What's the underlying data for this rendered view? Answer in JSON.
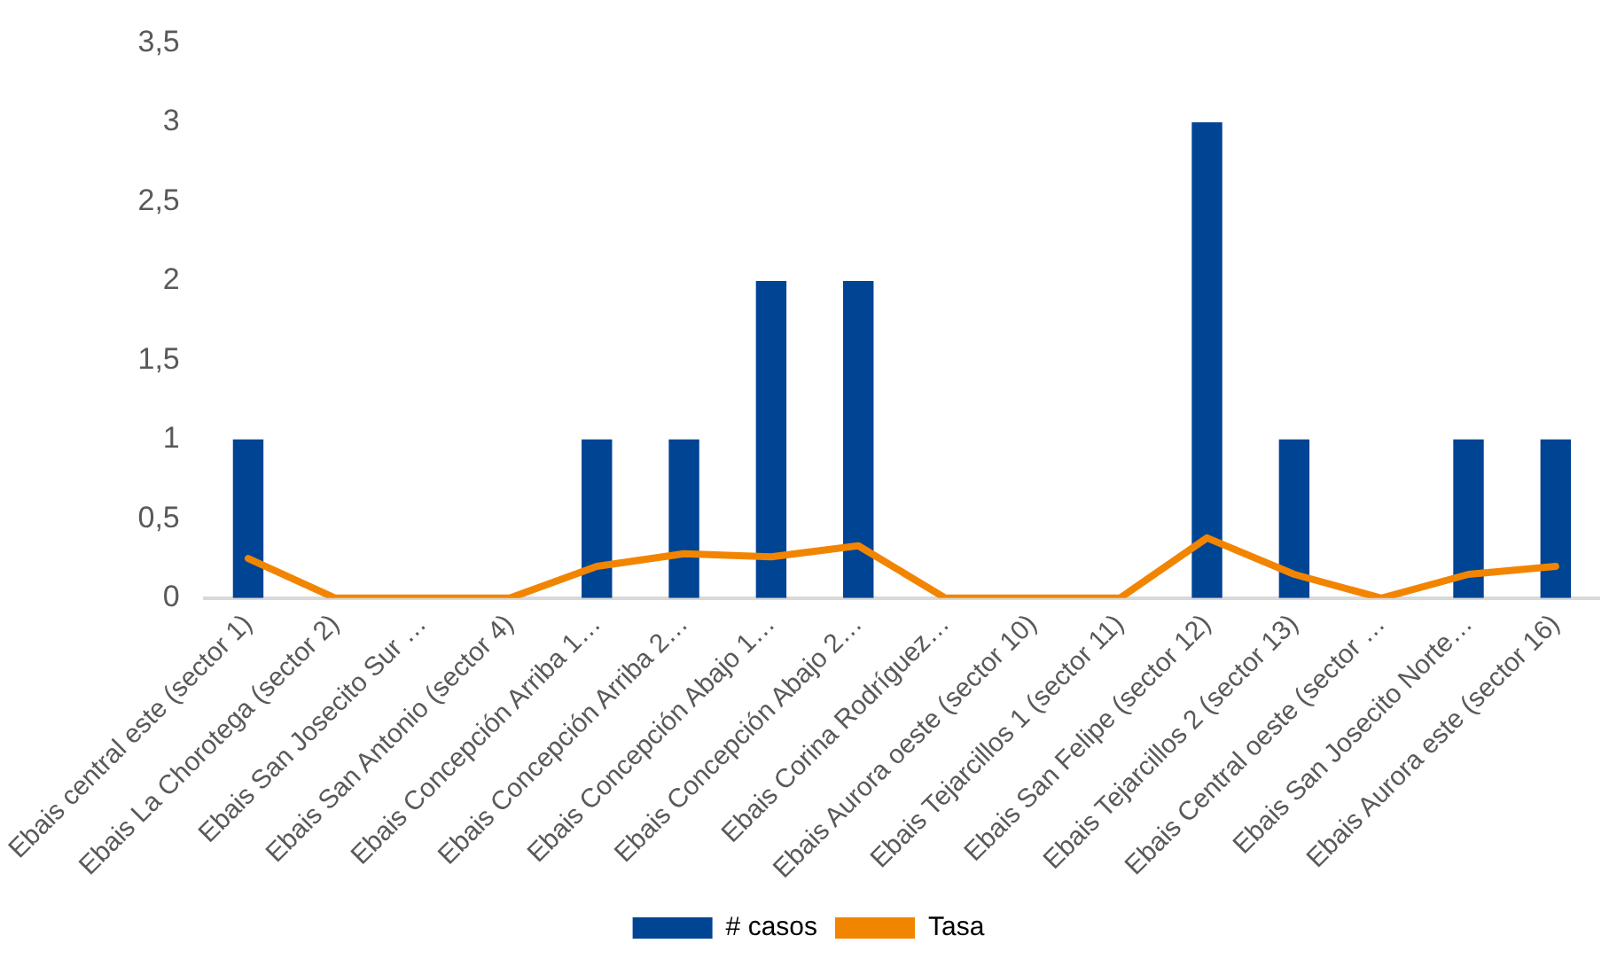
{
  "chart_data": {
    "type": "bar",
    "categories": [
      "Ebais central este (sector 1)",
      "Ebais La Chorotega (sector 2)",
      "Ebais San Josecito Sur …",
      "Ebais San Antonio (sector 4)",
      "Ebais Concepción Arriba 1…",
      "Ebais Concepción Arriba 2…",
      "Ebais Concepción Abajo 1…",
      "Ebais Concepción Abajo 2…",
      "Ebais Corina Rodríguez…",
      "Ebais Aurora oeste (sector 10)",
      "Ebais Tejarcillos 1 (sector 11)",
      "Ebais San Felipe (sector 12)",
      "Ebais Tejarcillos 2 (sector 13)",
      "Ebais Central oeste (sector …",
      "Ebais San Josecito Norte…",
      "Ebais Aurora este (sector 16)"
    ],
    "series": [
      {
        "name": "# casos",
        "color": "#004494",
        "values": [
          1,
          0,
          0,
          0,
          1,
          1,
          2,
          2,
          0,
          0,
          0,
          3,
          1,
          0,
          1,
          1
        ]
      },
      {
        "name": "Tasa",
        "type": "line",
        "color": "#f28500",
        "values": [
          0.25,
          0,
          0,
          0,
          0.2,
          0.28,
          0.26,
          0.33,
          0,
          0,
          0,
          0.38,
          0.15,
          0,
          0.15,
          0.2
        ]
      }
    ],
    "ylim": [
      0,
      3.5
    ],
    "yticks": [
      0,
      {
        "value": 0.5,
        "label": "0,5"
      },
      1,
      {
        "value": 1.5,
        "label": "1,5"
      },
      2,
      {
        "value": 2.5,
        "label": "2,5"
      },
      3,
      {
        "value": 3.5,
        "label": "3,5"
      }
    ],
    "grid": false,
    "legend": "bottom",
    "marker": "none",
    "line_style": "solid"
  }
}
